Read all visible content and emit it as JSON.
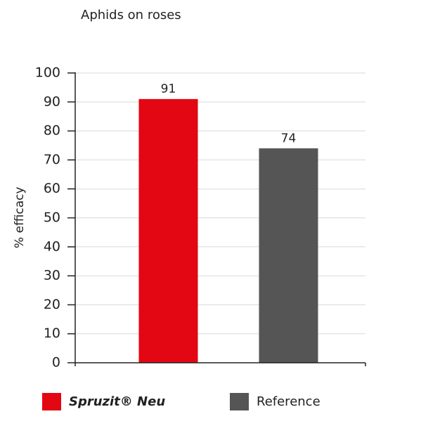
{
  "chart_data": {
    "type": "bar",
    "title": "Aphids on roses",
    "y_label": "% efficacy",
    "categories": [
      null,
      null
    ],
    "series": [
      {
        "name": "Spruzit® Neu",
        "color": "#e30613",
        "values": [
          91,
          null
        ]
      },
      {
        "name": "Reference",
        "color": "#555555",
        "values": [
          null,
          74
        ]
      }
    ],
    "ylim": [
      0,
      100
    ],
    "yticks": [
      0,
      10,
      20,
      30,
      40,
      50,
      60,
      70,
      80,
      90,
      100
    ],
    "grid": true
  }
}
